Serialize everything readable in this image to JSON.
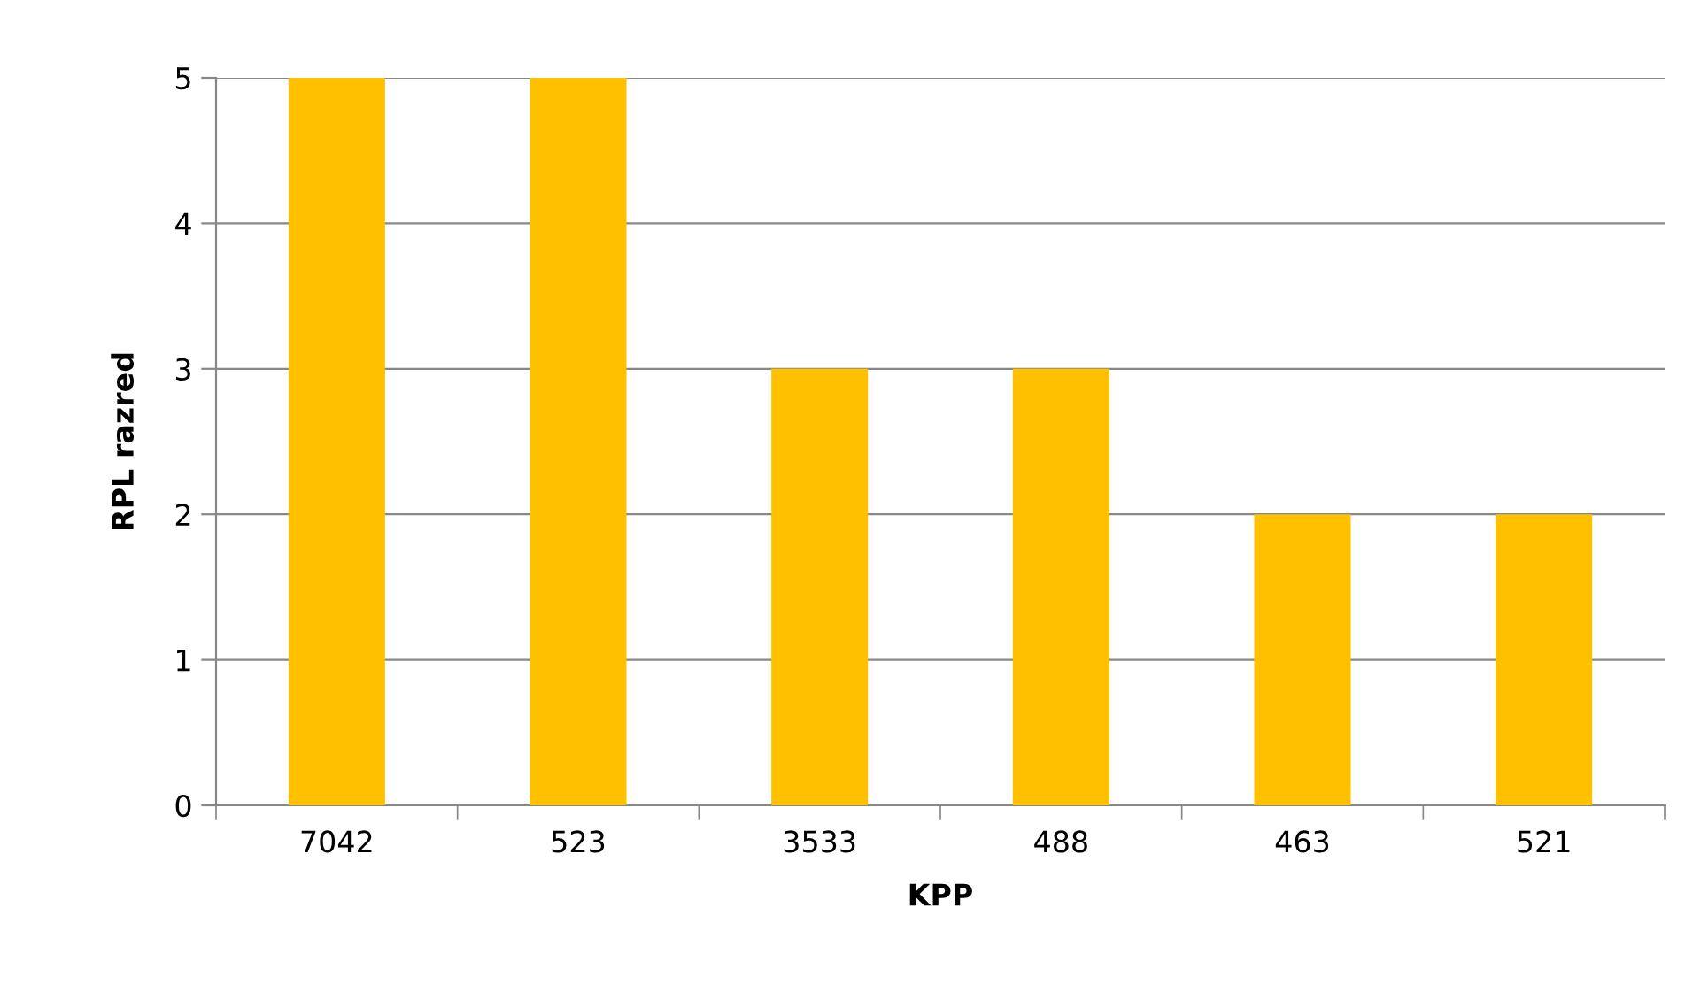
{
  "chart_data": {
    "type": "bar",
    "xlabel": "KPP",
    "ylabel": "RPL razred",
    "categories": [
      "7042",
      "523",
      "3533",
      "488",
      "463",
      "521"
    ],
    "values": [
      5,
      5,
      3,
      3,
      2,
      2
    ],
    "color": "#ffc000",
    "ylim": [
      0,
      5
    ],
    "yticks": [
      0,
      1,
      2,
      3,
      4,
      5
    ],
    "grid": "y",
    "legend": false
  }
}
